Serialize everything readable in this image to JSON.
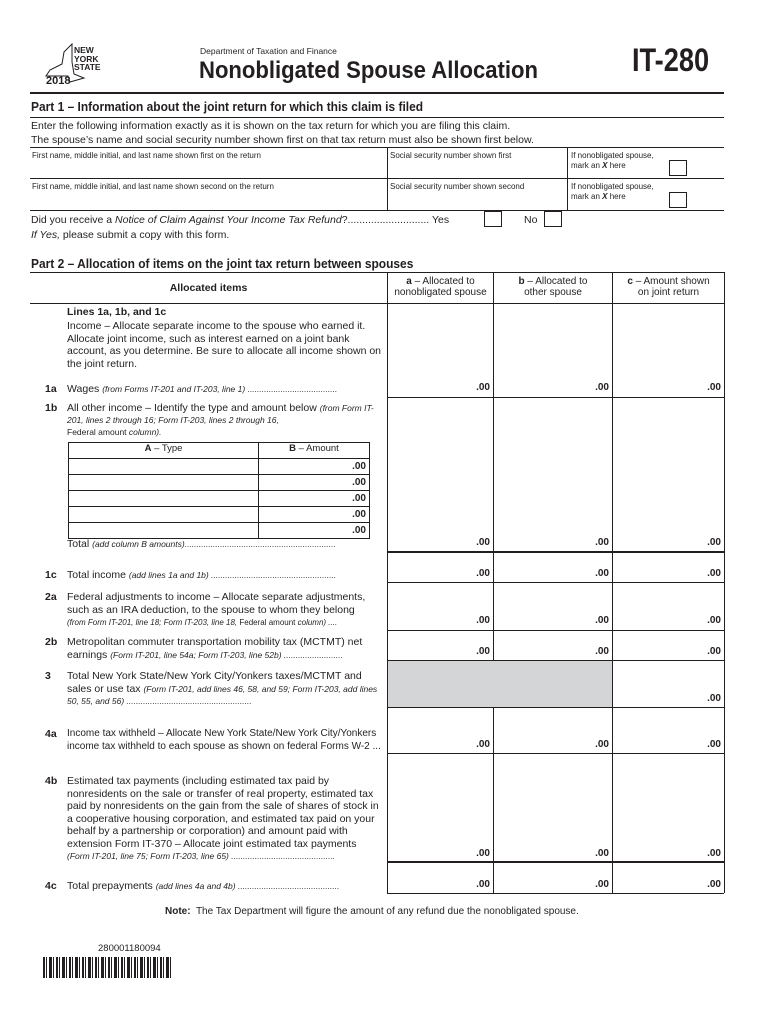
{
  "header": {
    "logo": {
      "line1": "NEW",
      "line2": "YORK",
      "line3": "STATE",
      "year": "2018"
    },
    "department": "Department of Taxation and Finance",
    "title": "Nonobligated Spouse Allocation",
    "form_number": "IT-280"
  },
  "part1": {
    "heading": "Part 1 – Information about the joint return for which this claim is filed",
    "instructions": [
      "Enter the following information exactly as it is shown on the tax return for which you are filing this claim.",
      "The spouse’s name and social security number shown first on that tax return must also be shown first below."
    ],
    "rows": [
      {
        "name_label": "First name, middle initial, and last name shown first on the return",
        "ssn_label": "Social security number shown first",
        "mark_label1": "If nonobligated spouse,",
        "mark_label2a": "mark an ",
        "mark_x": "X",
        "mark_label2b": " here"
      },
      {
        "name_label": "First name, middle initial, and last name shown second on the return",
        "ssn_label": "Social security number shown second",
        "mark_label1": "If nonobligated spouse,",
        "mark_label2a": "mark an ",
        "mark_x": "X",
        "mark_label2b": " here"
      }
    ],
    "notice_q_prefix": "Did you receive a ",
    "notice_q_italic": "Notice of Claim Against Your Income Tax Refund",
    "notice_q_suffix": "?............................",
    "yes_label": "Yes",
    "no_label": "No",
    "if_yes_italic": "If Yes,",
    "if_yes_rest": " please submit a copy with this form."
  },
  "part2": {
    "heading": "Part 2 – Allocation of items on the joint tax return between spouses",
    "col_items": "Allocated items",
    "col_a": {
      "letter": "a",
      "line1": " – Allocated to",
      "line2": "nonobligated spouse"
    },
    "col_b": {
      "letter": "b",
      "line1": " – Allocated to",
      "line2": "other spouse"
    },
    "col_c": {
      "letter": "c",
      "line1": " – Amount shown",
      "line2": "on joint return"
    },
    "cents": ".00",
    "intro_heading": "Lines 1a, 1b, and 1c",
    "intro_text": "Income – Allocate separate income to the spouse who earned it. Allocate joint income, such as interest earned on a joint bank account, as you determine. Be sure to allocate all income shown on the joint return.",
    "line1a": {
      "num": "1a",
      "text": "Wages ",
      "ref": "(from Forms IT-201 and IT-203, line 1)",
      "dots": " ......................................"
    },
    "line1b": {
      "num": "1b",
      "text": "All other income – Identify the type and amount below ",
      "ref": "(from Form IT-201, lines 2 through 16; Form IT-203, lines 2 through 16,",
      "ref2a": "Federal amount",
      "ref2b": " column)."
    },
    "subtable": {
      "col_a_letter": "A",
      "col_a": " – Type",
      "col_b_letter": "B",
      "col_b": " – Amount",
      "rows": 5
    },
    "total": {
      "text": "Total ",
      "ref": "(add column B amounts)",
      "dots": "................................................................"
    },
    "line1c": {
      "num": "1c",
      "text": "Total income ",
      "ref": "(add lines 1a and 1b)",
      "dots": " ....................................................."
    },
    "line2a": {
      "num": "2a",
      "text": "Federal adjustments to income – Allocate separate adjustments, such as an IRA deduction, to the spouse to whom they belong",
      "ref": "(from Form IT-201, line 18; Form IT-203, line 18, ",
      "ref_plain": "Federal amount",
      "ref_end": " column) ...."
    },
    "line2b": {
      "num": "2b",
      "text": "Metropolitan commuter transportation mobility tax (MCTMT) net earnings ",
      "ref": "(Form IT-201, line 54a; Form IT-203, line 52b)",
      "dots": " ........................."
    },
    "line3": {
      "num": "3",
      "text": "Total New York State/New York City/Yonkers taxes/MCTMT and sales or use tax ",
      "ref": "(Form IT-201, add lines 46, 58, and 59; Form IT-203, add lines 50, 55, and 56)",
      "dots": " ....................................................."
    },
    "line4a": {
      "num": "4a",
      "text": "Income tax withheld – Allocate New York State/New York City/Yonkers income tax withheld to each spouse as shown on federal Forms W-2 ..."
    },
    "line4b": {
      "num": "4b",
      "text": "Estimated tax payments (including estimated tax paid by nonresidents on the sale or transfer of real property, estimated tax paid by nonresidents on the gain from the sale of shares of stock in a cooperative housing corporation, and estimated tax paid on your behalf by a partnership or corporation) and amount paid with extension Form IT-370 – Allocate joint estimated tax payments",
      "ref": "(Form IT-201, line 75; Form IT-203, line 65)",
      "dots": " ............................................"
    },
    "line4c": {
      "num": "4c",
      "text": "Total prepayments ",
      "ref": "(add lines 4a and 4b)",
      "dots": " ..........................................."
    },
    "shade_color": "#d4d5d6"
  },
  "note": {
    "label": "Note:",
    "text": "  The Tax Department will figure the amount of any refund due the nonobligated spouse."
  },
  "barcode": {
    "number": "280001180094"
  }
}
